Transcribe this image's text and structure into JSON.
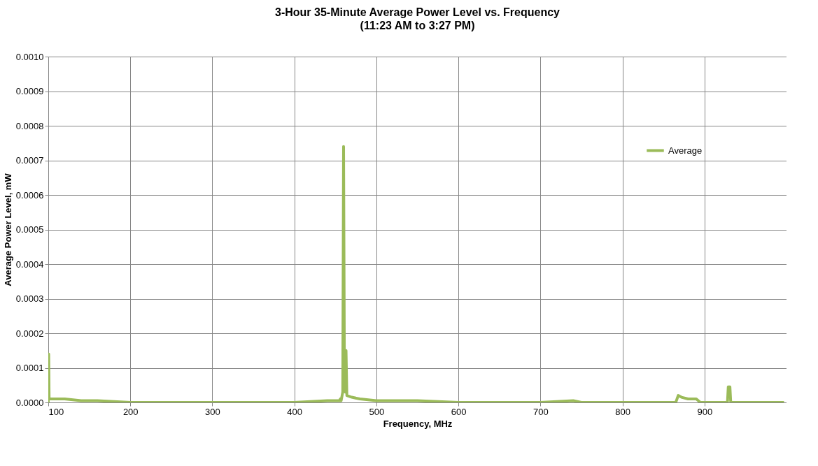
{
  "chart_data": {
    "type": "line",
    "title": "3-Hour 35-Minute Average Power Level vs. Frequency",
    "subtitle": "(11:23 AM to 3:27 PM)",
    "xlabel": "Frequency, MHz",
    "ylabel": "Average Power Level, mW",
    "x": [
      100,
      100.5,
      101,
      105,
      120,
      140,
      160,
      200,
      300,
      400,
      440,
      455,
      456,
      457,
      459,
      460,
      461,
      462,
      463,
      464,
      470,
      480,
      500,
      550,
      600,
      700,
      740,
      750,
      800,
      865,
      868,
      872,
      880,
      890,
      895,
      928,
      929,
      931,
      932,
      997
    ],
    "series": [
      {
        "name": "Average",
        "color": "#9bbb59",
        "values": [
          0,
          0.00014,
          1e-05,
          1e-05,
          1e-05,
          5e-06,
          5e-06,
          0,
          0,
          0,
          5e-06,
          5e-06,
          1e-05,
          5e-06,
          3e-05,
          0.00074,
          0.0001,
          3e-05,
          0.00015,
          2e-05,
          1.5e-05,
          1e-05,
          5e-06,
          5e-06,
          0,
          0,
          5e-06,
          0,
          0,
          0,
          2e-05,
          1.5e-05,
          1e-05,
          1e-05,
          0,
          0,
          4.5e-05,
          4.5e-05,
          0,
          0
        ]
      }
    ],
    "xlim": [
      100,
      1000
    ],
    "xticks": [
      100,
      200,
      300,
      400,
      500,
      600,
      700,
      800,
      900
    ],
    "ylim": [
      0,
      0.001
    ],
    "yticks": [
      {
        "value": 0,
        "label": "0.0000"
      },
      {
        "value": 0.0001,
        "label": "0.0001"
      },
      {
        "value": 0.0002,
        "label": "0.0002"
      },
      {
        "value": 0.0003,
        "label": "0.0003"
      },
      {
        "value": 0.0004,
        "label": "0.0004"
      },
      {
        "value": 0.0005,
        "label": "0.0005"
      },
      {
        "value": 0.0006,
        "label": "0.0006"
      },
      {
        "value": 0.0007,
        "label": "0.0007"
      },
      {
        "value": 0.0008,
        "label": "0.0008"
      },
      {
        "value": 0.0009,
        "label": "0.0009"
      },
      {
        "value": 0.001,
        "label": "0.0010"
      }
    ],
    "grid": true,
    "legend": "top right",
    "marker": "none",
    "line_style": "solid"
  }
}
